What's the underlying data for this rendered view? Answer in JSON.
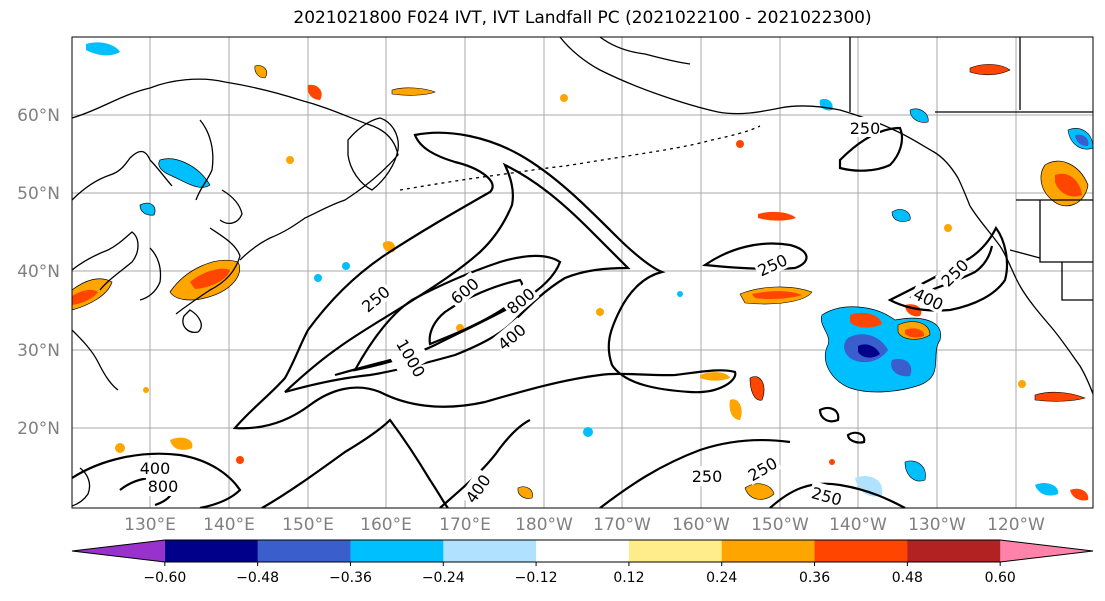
{
  "title": "2021021800 F024 IVT, IVT Landfall PC (2021022100 - 2021022300)",
  "lat_labels": [
    "60°N",
    "50°N",
    "40°N",
    "30°N",
    "20°N"
  ],
  "lon_labels": [
    "130°E",
    "140°E",
    "150°E",
    "160°E",
    "170°E",
    "180°W",
    "170°W",
    "160°W",
    "150°W",
    "140°W",
    "130°W",
    "120°W"
  ],
  "contour_labels": [
    "250",
    "600",
    "800",
    "400",
    "1000",
    "250",
    "250",
    "400",
    "400",
    "800",
    "400",
    "250",
    "250",
    "250",
    "250"
  ],
  "colorbar": {
    "colors": [
      "#9932cc",
      "#00008b",
      "#3a5fcd",
      "#00bfff",
      "#b0e2ff",
      "#ffffff",
      "#ffec8b",
      "#ffa500",
      "#ff4500",
      "#b22222",
      "#ff82ab"
    ],
    "ticks": [
      "−0.60",
      "−0.48",
      "−0.36",
      "−0.24",
      "−0.12",
      "0.12",
      "0.24",
      "0.36",
      "0.48",
      "0.60"
    ]
  }
}
